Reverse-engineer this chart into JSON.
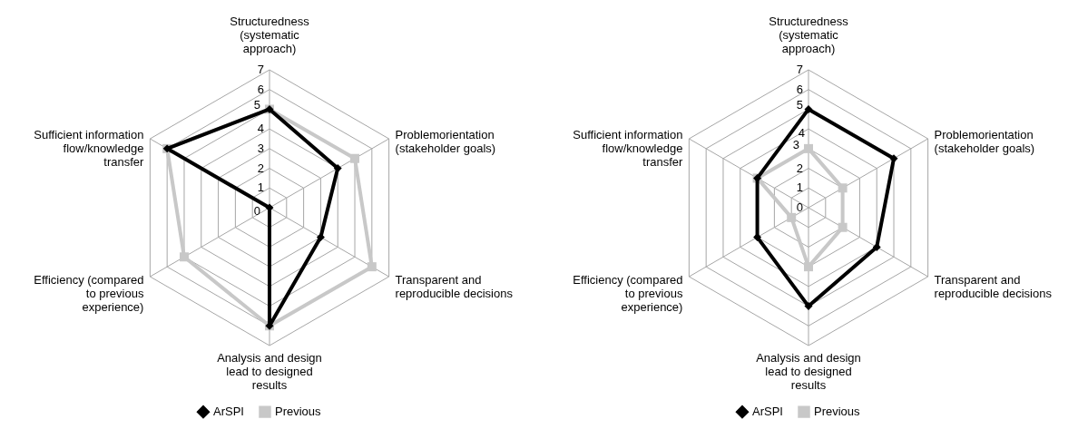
{
  "chart_data": [
    {
      "type": "radar",
      "categories": [
        "Structuredness (systematic approach)",
        "Problemorientation (stakeholder goals)",
        "Transparent and reproducible decisions",
        "Analysis and design lead to designed results",
        "Efficiency (compared to previous experience)",
        "Sufficient information flow/knowledge transfer"
      ],
      "ylim": [
        0,
        7
      ],
      "yticks": [
        0,
        1,
        2,
        3,
        4,
        5,
        6,
        7
      ],
      "grid": true,
      "legend": "bottom",
      "series": [
        {
          "name": "ArSPI",
          "color": "#000000",
          "marker": "diamond",
          "values": [
            5,
            4,
            3,
            6,
            0,
            6
          ]
        },
        {
          "name": "Previous",
          "color": "#c8c8c8",
          "marker": "square",
          "values": [
            5,
            5,
            6,
            6,
            5,
            6
          ]
        }
      ]
    },
    {
      "type": "radar",
      "categories": [
        "Structuredness (systematic approach)",
        "Problemorientation (stakeholder goals)",
        "Transparent and reproducible decisions",
        "Analysis and design lead to designed results",
        "Efficiency (compared to previous experience)",
        "Sufficient information flow/knowledge transfer"
      ],
      "ylim": [
        0,
        7
      ],
      "yticks": [
        0,
        1,
        2,
        3,
        4,
        5,
        6,
        7
      ],
      "grid": true,
      "legend": "bottom",
      "series": [
        {
          "name": "ArSPI",
          "color": "#000000",
          "marker": "diamond",
          "values": [
            5,
            5,
            4,
            5,
            3,
            3
          ]
        },
        {
          "name": "Previous",
          "color": "#c8c8c8",
          "marker": "square",
          "values": [
            3,
            2,
            2,
            3,
            1,
            3
          ]
        }
      ]
    }
  ]
}
